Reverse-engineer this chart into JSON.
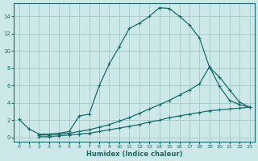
{
  "xlabel": "Humidex (Indice chaleur)",
  "bg_color": "#cce8e8",
  "grid_color": "#aacccc",
  "line_color": "#1a6b6b",
  "xlim": [
    -0.5,
    23.5
  ],
  "ylim": [
    -0.5,
    15.5
  ],
  "yticks": [
    0,
    2,
    4,
    6,
    8,
    10,
    12,
    14
  ],
  "xticks": [
    0,
    1,
    2,
    3,
    4,
    5,
    6,
    7,
    8,
    9,
    10,
    11,
    12,
    13,
    14,
    15,
    16,
    17,
    18,
    19,
    20,
    21,
    22,
    23
  ],
  "line1_x": [
    0,
    1,
    2,
    3,
    4,
    5,
    6,
    7,
    8,
    9,
    10,
    11,
    12,
    13,
    14,
    15,
    16,
    17,
    18,
    19,
    20,
    21,
    22,
    23
  ],
  "line1_y": [
    2.1,
    1.0,
    0.4,
    0.4,
    0.5,
    0.7,
    2.5,
    2.7,
    6.0,
    8.5,
    10.5,
    12.6,
    13.2,
    14.0,
    15.0,
    14.9,
    14.0,
    13.0,
    11.5,
    8.1,
    7.0,
    5.5,
    4.1,
    3.5
  ],
  "line2_x": [
    2,
    3,
    4,
    5,
    6,
    7,
    8,
    9,
    10,
    11,
    12,
    13,
    14,
    15,
    16,
    17,
    18,
    19,
    20,
    21,
    22,
    23
  ],
  "line2_y": [
    0.3,
    0.3,
    0.4,
    0.5,
    0.7,
    0.9,
    1.2,
    1.5,
    1.9,
    2.3,
    2.8,
    3.3,
    3.8,
    4.3,
    4.9,
    5.5,
    6.2,
    8.2,
    5.9,
    4.3,
    3.8,
    3.5
  ],
  "line3_x": [
    2,
    3,
    4,
    5,
    6,
    7,
    8,
    9,
    10,
    11,
    12,
    13,
    14,
    15,
    16,
    17,
    18,
    19,
    20,
    21,
    22,
    23
  ],
  "line3_y": [
    0.1,
    0.1,
    0.2,
    0.3,
    0.4,
    0.5,
    0.7,
    0.9,
    1.1,
    1.3,
    1.5,
    1.8,
    2.0,
    2.3,
    2.5,
    2.7,
    2.9,
    3.1,
    3.2,
    3.3,
    3.4,
    3.5
  ]
}
